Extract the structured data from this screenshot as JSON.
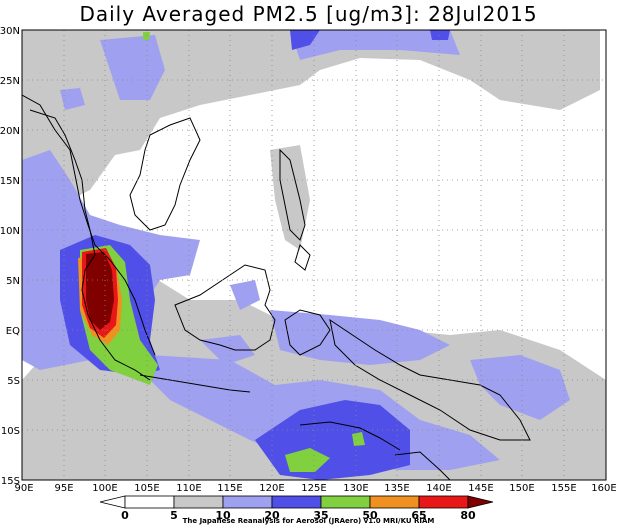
{
  "title": "Daily Averaged PM2.5 [ug/m3]: 28Jul2015",
  "lat_labels": [
    "30N",
    "25N",
    "20N",
    "15N",
    "10N",
    "5N",
    "EQ",
    "5S",
    "10S",
    "15S"
  ],
  "lon_labels": [
    "90E",
    "95E",
    "100E",
    "105E",
    "110E",
    "115E",
    "120E",
    "125E",
    "130E",
    "135E",
    "140E",
    "145E",
    "150E",
    "155E",
    "160E"
  ],
  "colorbar": {
    "values": [
      "0",
      "5",
      "10",
      "20",
      "35",
      "50",
      "65",
      "80"
    ],
    "colors": [
      "#ffffff",
      "#c8c8c8",
      "#a0a0f0",
      "#5050e8",
      "#80d040",
      "#f09020",
      "#e81818",
      "#800000"
    ]
  },
  "credit": "The Japanese Reanalysis for Aerosol (JRAero) v1.0 MRI/KU RIAM"
}
